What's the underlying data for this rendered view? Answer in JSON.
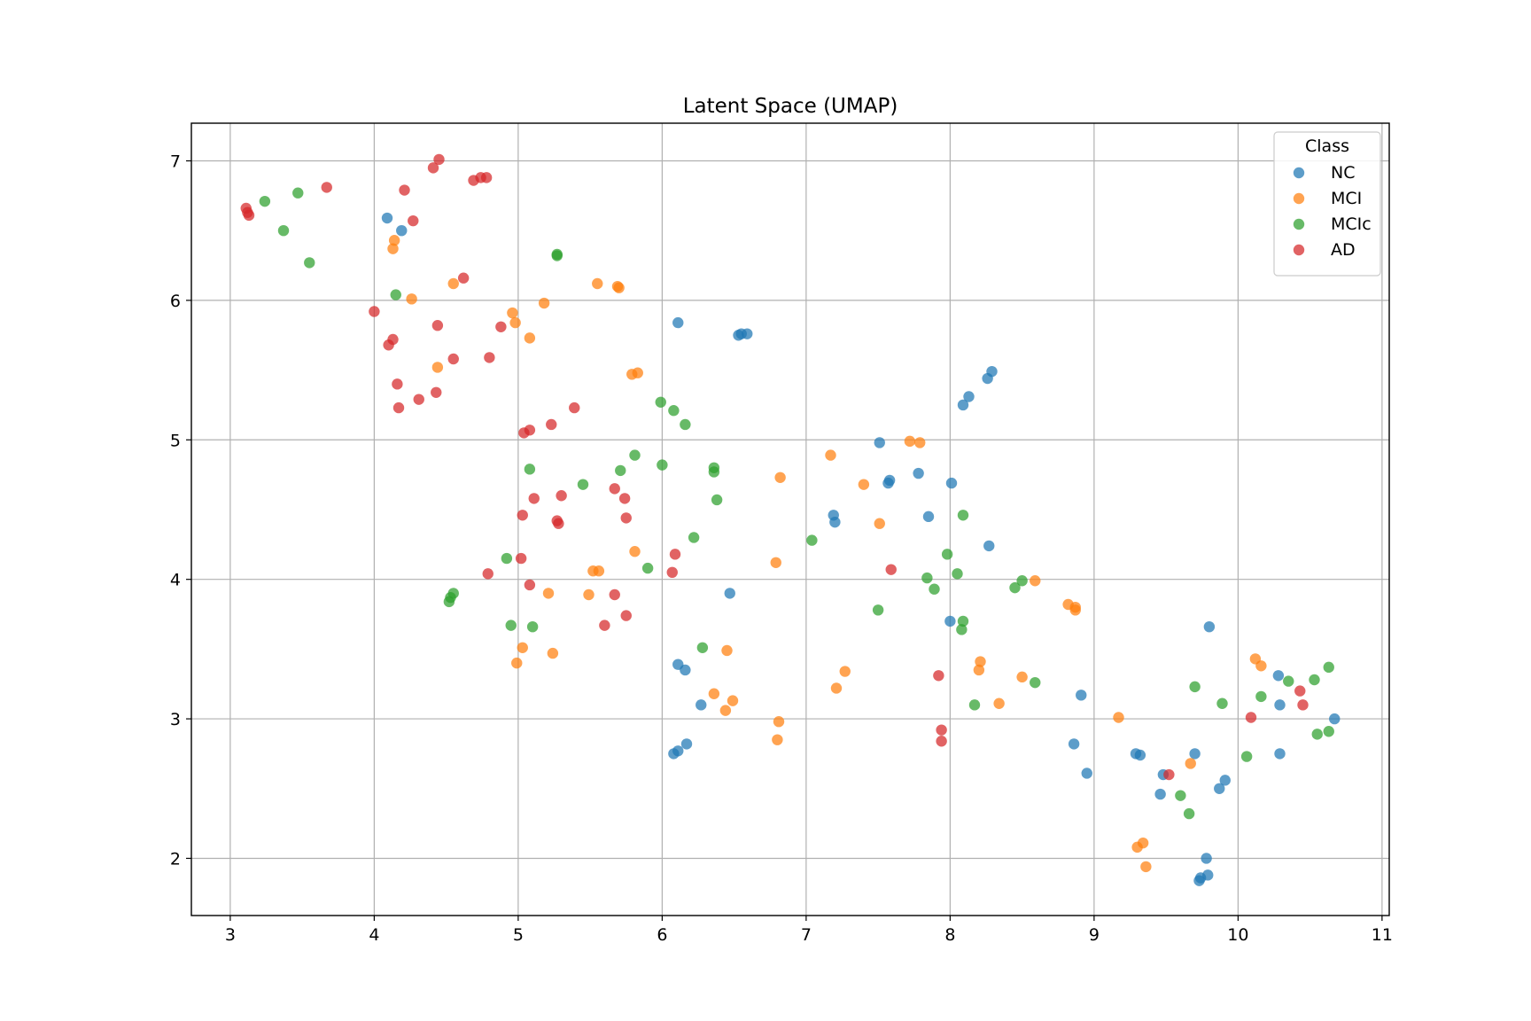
{
  "chart_data": {
    "type": "scatter",
    "title": "Latent Space (UMAP)",
    "xlabel": "",
    "ylabel": "",
    "xlim": [
      2.73,
      11.05
    ],
    "ylim": [
      1.59,
      7.27
    ],
    "xticks": [
      3,
      4,
      5,
      6,
      7,
      8,
      9,
      10,
      11
    ],
    "yticks": [
      2,
      3,
      4,
      5,
      6,
      7
    ],
    "grid": true,
    "legend": {
      "title": "Class",
      "placement": "top-right"
    },
    "series": [
      {
        "name": "NC",
        "color": "#1f77b4",
        "points": [
          [
            4.09,
            6.59
          ],
          [
            4.19,
            6.5
          ],
          [
            6.11,
            5.84
          ],
          [
            6.53,
            5.75
          ],
          [
            6.55,
            5.76
          ],
          [
            6.59,
            5.76
          ],
          [
            8.29,
            5.49
          ],
          [
            8.26,
            5.44
          ],
          [
            8.13,
            5.31
          ],
          [
            8.09,
            5.25
          ],
          [
            7.51,
            4.98
          ],
          [
            7.58,
            4.71
          ],
          [
            7.57,
            4.69
          ],
          [
            7.78,
            4.76
          ],
          [
            8.01,
            4.69
          ],
          [
            7.19,
            4.46
          ],
          [
            7.2,
            4.41
          ],
          [
            7.85,
            4.45
          ],
          [
            8.27,
            4.24
          ],
          [
            6.47,
            3.9
          ],
          [
            8.0,
            3.7
          ],
          [
            9.8,
            3.66
          ],
          [
            6.11,
            3.39
          ],
          [
            6.16,
            3.35
          ],
          [
            6.27,
            3.1
          ],
          [
            8.91,
            3.17
          ],
          [
            6.17,
            2.82
          ],
          [
            6.11,
            2.77
          ],
          [
            6.08,
            2.75
          ],
          [
            8.86,
            2.82
          ],
          [
            9.29,
            2.75
          ],
          [
            9.32,
            2.74
          ],
          [
            9.7,
            2.75
          ],
          [
            8.95,
            2.61
          ],
          [
            9.48,
            2.6
          ],
          [
            9.46,
            2.46
          ],
          [
            9.91,
            2.56
          ],
          [
            9.87,
            2.5
          ],
          [
            10.28,
            3.31
          ],
          [
            10.29,
            3.1
          ],
          [
            10.29,
            2.75
          ],
          [
            10.67,
            3.0
          ],
          [
            9.78,
            2.0
          ],
          [
            9.79,
            1.88
          ],
          [
            9.74,
            1.86
          ],
          [
            9.73,
            1.84
          ]
        ]
      },
      {
        "name": "MCI",
        "color": "#ff7f0e",
        "points": [
          [
            4.14,
            6.43
          ],
          [
            4.13,
            6.37
          ],
          [
            4.26,
            6.01
          ],
          [
            4.55,
            6.12
          ],
          [
            5.55,
            6.12
          ],
          [
            5.69,
            6.1
          ],
          [
            5.7,
            6.09
          ],
          [
            4.96,
            5.91
          ],
          [
            5.18,
            5.98
          ],
          [
            4.98,
            5.84
          ],
          [
            5.08,
            5.73
          ],
          [
            4.44,
            5.52
          ],
          [
            5.79,
            5.47
          ],
          [
            5.83,
            5.48
          ],
          [
            7.72,
            4.99
          ],
          [
            7.79,
            4.98
          ],
          [
            7.17,
            4.89
          ],
          [
            6.82,
            4.73
          ],
          [
            7.4,
            4.68
          ],
          [
            7.51,
            4.4
          ],
          [
            5.81,
            4.2
          ],
          [
            6.79,
            4.12
          ],
          [
            5.52,
            4.06
          ],
          [
            5.56,
            4.06
          ],
          [
            5.21,
            3.9
          ],
          [
            5.49,
            3.89
          ],
          [
            8.59,
            3.99
          ],
          [
            8.82,
            3.82
          ],
          [
            8.87,
            3.8
          ],
          [
            8.87,
            3.78
          ],
          [
            5.03,
            3.51
          ],
          [
            4.99,
            3.4
          ],
          [
            5.24,
            3.47
          ],
          [
            6.45,
            3.49
          ],
          [
            7.27,
            3.34
          ],
          [
            7.21,
            3.22
          ],
          [
            8.21,
            3.41
          ],
          [
            8.2,
            3.35
          ],
          [
            8.5,
            3.3
          ],
          [
            6.36,
            3.18
          ],
          [
            6.49,
            3.13
          ],
          [
            6.44,
            3.06
          ],
          [
            8.34,
            3.11
          ],
          [
            6.81,
            2.98
          ],
          [
            6.8,
            2.85
          ],
          [
            9.17,
            3.01
          ],
          [
            10.12,
            3.43
          ],
          [
            10.16,
            3.38
          ],
          [
            9.67,
            2.68
          ],
          [
            9.3,
            2.08
          ],
          [
            9.34,
            2.11
          ],
          [
            9.36,
            1.94
          ]
        ]
      },
      {
        "name": "MCIc",
        "color": "#2ca02c",
        "points": [
          [
            3.24,
            6.71
          ],
          [
            3.47,
            6.77
          ],
          [
            3.37,
            6.5
          ],
          [
            3.55,
            6.27
          ],
          [
            5.27,
            6.32
          ],
          [
            5.27,
            6.33
          ],
          [
            4.15,
            6.04
          ],
          [
            5.99,
            5.27
          ],
          [
            6.08,
            5.21
          ],
          [
            6.16,
            5.11
          ],
          [
            5.08,
            4.79
          ],
          [
            5.45,
            4.68
          ],
          [
            5.71,
            4.78
          ],
          [
            5.81,
            4.89
          ],
          [
            6.0,
            4.82
          ],
          [
            6.36,
            4.8
          ],
          [
            6.36,
            4.77
          ],
          [
            6.38,
            4.57
          ],
          [
            8.09,
            4.46
          ],
          [
            6.22,
            4.3
          ],
          [
            7.04,
            4.28
          ],
          [
            4.92,
            4.15
          ],
          [
            5.9,
            4.08
          ],
          [
            7.98,
            4.18
          ],
          [
            7.84,
            4.01
          ],
          [
            8.05,
            4.04
          ],
          [
            7.89,
            3.93
          ],
          [
            8.45,
            3.94
          ],
          [
            8.5,
            3.99
          ],
          [
            4.55,
            3.9
          ],
          [
            4.53,
            3.87
          ],
          [
            4.52,
            3.84
          ],
          [
            4.95,
            3.67
          ],
          [
            5.1,
            3.66
          ],
          [
            7.5,
            3.78
          ],
          [
            8.09,
            3.7
          ],
          [
            8.08,
            3.64
          ],
          [
            6.28,
            3.51
          ],
          [
            8.59,
            3.26
          ],
          [
            8.17,
            3.1
          ],
          [
            9.7,
            3.23
          ],
          [
            9.89,
            3.11
          ],
          [
            10.16,
            3.16
          ],
          [
            10.35,
            3.27
          ],
          [
            10.53,
            3.28
          ],
          [
            10.63,
            3.37
          ],
          [
            10.55,
            2.89
          ],
          [
            10.63,
            2.91
          ],
          [
            10.06,
            2.73
          ],
          [
            9.6,
            2.45
          ],
          [
            9.66,
            2.32
          ]
        ]
      },
      {
        "name": "AD",
        "color": "#d62728",
        "points": [
          [
            3.11,
            6.66
          ],
          [
            3.12,
            6.63
          ],
          [
            3.13,
            6.61
          ],
          [
            3.67,
            6.81
          ],
          [
            4.21,
            6.79
          ],
          [
            4.27,
            6.57
          ],
          [
            4.41,
            6.95
          ],
          [
            4.45,
            7.01
          ],
          [
            4.69,
            6.86
          ],
          [
            4.74,
            6.88
          ],
          [
            4.78,
            6.88
          ],
          [
            4.62,
            6.16
          ],
          [
            4.0,
            5.92
          ],
          [
            4.44,
            5.82
          ],
          [
            4.88,
            5.81
          ],
          [
            4.1,
            5.68
          ],
          [
            4.13,
            5.72
          ],
          [
            4.55,
            5.58
          ],
          [
            4.8,
            5.59
          ],
          [
            4.16,
            5.4
          ],
          [
            4.17,
            5.23
          ],
          [
            4.31,
            5.29
          ],
          [
            4.43,
            5.34
          ],
          [
            5.39,
            5.23
          ],
          [
            5.23,
            5.11
          ],
          [
            5.08,
            5.07
          ],
          [
            5.04,
            5.05
          ],
          [
            5.67,
            4.65
          ],
          [
            5.74,
            4.58
          ],
          [
            5.11,
            4.58
          ],
          [
            5.3,
            4.6
          ],
          [
            5.03,
            4.46
          ],
          [
            5.75,
            4.44
          ],
          [
            5.27,
            4.42
          ],
          [
            5.28,
            4.4
          ],
          [
            5.02,
            4.15
          ],
          [
            6.09,
            4.18
          ],
          [
            6.07,
            4.05
          ],
          [
            7.59,
            4.07
          ],
          [
            4.79,
            4.04
          ],
          [
            5.08,
            3.96
          ],
          [
            5.67,
            3.89
          ],
          [
            5.75,
            3.74
          ],
          [
            5.6,
            3.67
          ],
          [
            7.92,
            3.31
          ],
          [
            7.94,
            2.92
          ],
          [
            7.94,
            2.84
          ],
          [
            9.52,
            2.6
          ],
          [
            10.09,
            3.01
          ],
          [
            10.43,
            3.2
          ],
          [
            10.45,
            3.1
          ]
        ]
      }
    ]
  }
}
